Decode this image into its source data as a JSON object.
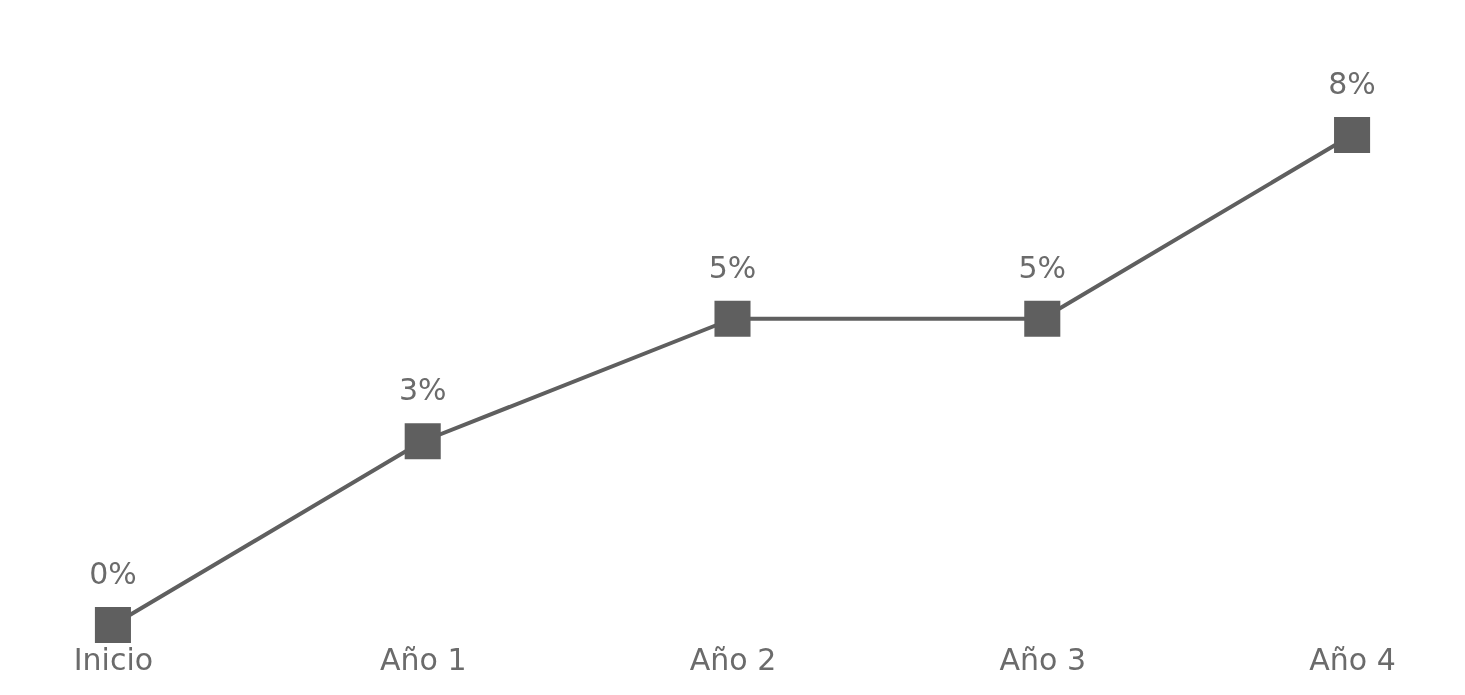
{
  "chart_data": {
    "type": "line",
    "categories": [
      "Inicio",
      "Año 1",
      "Año 2",
      "Año 3",
      "Año 4"
    ],
    "series": [
      {
        "color": "#5f5f5f",
        "values": [
          0,
          3,
          5,
          5,
          8
        ],
        "value_labels": [
          "0%",
          "3%",
          "5%",
          "5%",
          "8%"
        ]
      }
    ],
    "marker": "square",
    "line_style": "solid",
    "grid": false,
    "legend": false
  }
}
